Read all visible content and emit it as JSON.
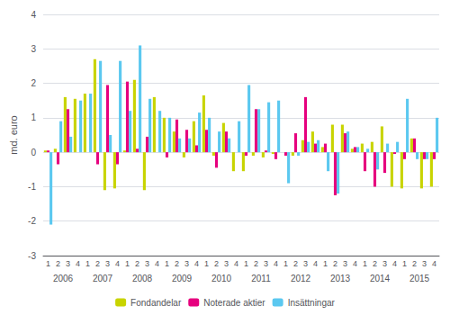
{
  "chart_data": {
    "type": "bar",
    "ylabel": "md. euro",
    "categories": [
      "1",
      "2",
      "3",
      "4",
      "1",
      "2",
      "3",
      "4",
      "1",
      "2",
      "3",
      "4",
      "1",
      "2",
      "3",
      "4",
      "1",
      "2",
      "3",
      "4",
      "1",
      "2",
      "3",
      "4",
      "1",
      "2",
      "3",
      "4",
      "1",
      "2",
      "3",
      "4",
      "1",
      "2",
      "3",
      "4",
      "1",
      "2",
      "3",
      "4"
    ],
    "groups": [
      "2006",
      "2007",
      "2008",
      "2009",
      "2010",
      "2011",
      "2012",
      "2013",
      "2014",
      "2015"
    ],
    "series": [
      {
        "name": "Fondandelar",
        "color": "#c8d400",
        "values": [
          0.05,
          0.1,
          1.6,
          1.55,
          1.7,
          2.7,
          -1.1,
          -1.05,
          0.05,
          2.1,
          -1.1,
          1.6,
          1.0,
          0.6,
          -0.15,
          0.9,
          1.65,
          -0.1,
          0.85,
          -0.55,
          -0.55,
          -0.1,
          -0.15,
          -0.05,
          0.0,
          -0.1,
          0.35,
          0.6,
          0.15,
          0.8,
          0.8,
          0.1,
          0.25,
          0.3,
          0.75,
          -1.0,
          -1.05,
          0.4,
          -1.05,
          -1.0
        ]
      },
      {
        "name": "Noterade aktier",
        "color": "#e6007e",
        "values": [
          0.05,
          -0.35,
          1.25,
          0.0,
          0.0,
          -0.35,
          1.95,
          -0.35,
          2.05,
          0.1,
          0.45,
          0.0,
          -0.15,
          0.95,
          0.65,
          0.2,
          0.65,
          -0.45,
          0.6,
          0.0,
          -0.1,
          1.25,
          0.05,
          -0.2,
          -0.1,
          0.55,
          1.6,
          0.25,
          0.25,
          -1.25,
          0.55,
          0.15,
          -0.55,
          -1.0,
          -0.6,
          -0.05,
          -0.2,
          0.4,
          -0.2,
          -0.2
        ]
      },
      {
        "name": "Insättningar",
        "color": "#5bc8f0",
        "values": [
          -2.1,
          0.9,
          0.45,
          1.5,
          1.7,
          2.65,
          0.5,
          2.65,
          1.2,
          3.1,
          1.55,
          1.2,
          1.0,
          0.4,
          0.4,
          1.15,
          1.0,
          0.6,
          0.4,
          0.9,
          1.95,
          1.25,
          1.45,
          1.5,
          -0.9,
          -0.1,
          0.3,
          0.35,
          -0.55,
          -1.2,
          0.6,
          0.15,
          0.1,
          -0.5,
          0.25,
          0.3,
          1.55,
          -0.2,
          -0.2,
          1.0
        ]
      }
    ],
    "ylim": [
      -3,
      4
    ],
    "yticks": [
      -3,
      -2,
      -1,
      0,
      1,
      2,
      3,
      4
    ],
    "grid": true,
    "legend": "bottom"
  }
}
